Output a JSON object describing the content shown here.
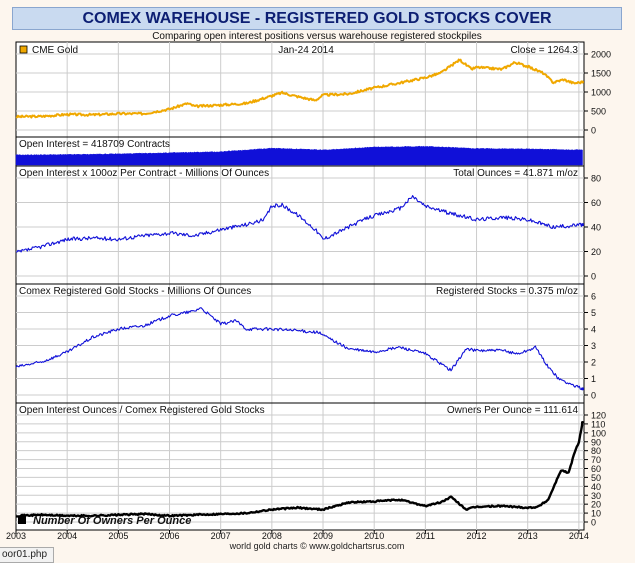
{
  "title": "COMEX WAREHOUSE - REGISTERED GOLD STOCKS COVER",
  "subtitle": "Comparing open interest positions versus warehouse registered stockpiles",
  "footer": "world gold charts © www.goldchartsrus.com",
  "file_tab": "oor01.php",
  "colors": {
    "gold": "#f0a800",
    "blue": "#1010d8",
    "black": "#000000",
    "grid": "#cccccc",
    "bg": "#ffffff"
  },
  "chart_data": [
    {
      "type": "line",
      "panel": "gold",
      "legend": "CME Gold",
      "date_label": "Jan-24  2014",
      "readout": "Close = 1264.3",
      "color": "#f0a800",
      "ylim": [
        -200,
        2200
      ],
      "yticks": [
        0,
        500,
        1000,
        1500,
        2000
      ],
      "x": [
        2003.0,
        2003.5,
        2004.0,
        2004.5,
        2005.0,
        2005.5,
        2006.0,
        2006.35,
        2006.5,
        2007.0,
        2007.5,
        2008.0,
        2008.2,
        2008.5,
        2008.85,
        2009.0,
        2009.5,
        2010.0,
        2010.5,
        2011.0,
        2011.3,
        2011.67,
        2011.9,
        2012.0,
        2012.5,
        2012.75,
        2013.0,
        2013.3,
        2013.5,
        2013.7,
        2013.9,
        2014.07
      ],
      "y": [
        350,
        360,
        410,
        400,
        430,
        430,
        550,
        700,
        620,
        660,
        700,
        900,
        980,
        880,
        780,
        920,
        950,
        1110,
        1240,
        1380,
        1500,
        1850,
        1600,
        1650,
        1600,
        1780,
        1670,
        1500,
        1250,
        1330,
        1230,
        1264
      ]
    },
    {
      "type": "area",
      "panel": "open_interest",
      "legend": "Open Interest = 418709 Contracts",
      "color": "#1010d8",
      "x": [
        2003.0,
        2004.0,
        2005.0,
        2006.0,
        2007.0,
        2008.0,
        2009.0,
        2010.0,
        2011.0,
        2012.0,
        2013.0,
        2014.07
      ],
      "y": [
        280000,
        290000,
        310000,
        340000,
        370000,
        470000,
        420000,
        500000,
        520000,
        460000,
        450000,
        418709
      ]
    },
    {
      "type": "line",
      "panel": "oi_ounces",
      "legend": "Open Interest x 100oz Per Contract - Millions Of Ounces",
      "readout": "Total Ounces = 41.871 m/oz",
      "color": "#1010d8",
      "ylim": [
        0,
        80
      ],
      "yticks": [
        0,
        20,
        40,
        60,
        80
      ],
      "x": [
        2003.0,
        2003.5,
        2004.0,
        2004.5,
        2005.0,
        2005.5,
        2006.0,
        2006.5,
        2007.0,
        2007.5,
        2007.85,
        2008.0,
        2008.2,
        2008.5,
        2008.85,
        2009.0,
        2009.5,
        2009.9,
        2010.5,
        2010.75,
        2011.0,
        2011.5,
        2012.0,
        2012.5,
        2013.0,
        2013.5,
        2014.07
      ],
      "y": [
        19,
        24,
        30,
        31,
        30,
        33,
        35,
        33,
        38,
        42,
        46,
        57,
        58,
        50,
        38,
        30,
        40,
        48,
        55,
        65,
        57,
        51,
        46,
        48,
        46,
        40,
        41.9
      ]
    },
    {
      "type": "line",
      "panel": "registered",
      "legend": "Comex Registered Gold Stocks - Millions Of Ounces",
      "readout": "Registered Stocks = 0.375 m/oz",
      "color": "#1010d8",
      "ylim": [
        0,
        6
      ],
      "yticks": [
        0,
        1,
        2,
        3,
        4,
        5,
        6
      ],
      "x": [
        2003.0,
        2003.5,
        2004.0,
        2004.5,
        2005.0,
        2005.5,
        2006.0,
        2006.5,
        2006.6,
        2007.0,
        2007.3,
        2007.5,
        2008.0,
        2008.5,
        2008.9,
        2009.5,
        2010.0,
        2010.5,
        2011.0,
        2011.3,
        2011.5,
        2011.8,
        2012.0,
        2012.5,
        2012.8,
        2013.0,
        2013.15,
        2013.4,
        2013.6,
        2013.8,
        2014.07
      ],
      "y": [
        1.7,
        2.0,
        2.6,
        3.5,
        4.0,
        4.2,
        4.8,
        5.1,
        5.3,
        4.3,
        4.5,
        4.0,
        4.0,
        3.9,
        3.8,
        2.8,
        2.6,
        2.9,
        2.5,
        1.9,
        1.5,
        2.8,
        2.7,
        2.7,
        2.5,
        2.7,
        2.9,
        1.7,
        1.0,
        0.7,
        0.375
      ]
    },
    {
      "type": "line",
      "panel": "owners",
      "legend": "Open Interest Ounces / Comex Registered Gold Stocks",
      "readout": "Owners Per Ounce = 111.614",
      "overlay_label": "Number Of Owners Per Ounce",
      "color": "#000000",
      "ylim": [
        0,
        120
      ],
      "yticks": [
        0,
        10,
        20,
        30,
        40,
        50,
        60,
        70,
        80,
        90,
        100,
        110,
        120
      ],
      "xlim": [
        2003,
        2014.1
      ],
      "xticks": [
        "2003",
        "2004",
        "2005",
        "2006",
        "2007",
        "2008",
        "2009",
        "2010",
        "2011",
        "2012",
        "2013",
        "2014"
      ],
      "x": [
        2003.0,
        2003.5,
        2004.0,
        2004.5,
        2005.0,
        2005.5,
        2006.0,
        2006.5,
        2007.0,
        2007.5,
        2008.0,
        2008.5,
        2009.0,
        2009.5,
        2010.0,
        2010.5,
        2011.0,
        2011.3,
        2011.5,
        2011.8,
        2012.0,
        2012.5,
        2013.0,
        2013.2,
        2013.4,
        2013.55,
        2013.65,
        2013.8,
        2013.9,
        2014.0,
        2014.07
      ],
      "y": [
        7,
        8,
        7,
        7,
        8,
        9,
        7,
        8,
        9,
        10,
        14,
        16,
        14,
        22,
        23,
        25,
        18,
        22,
        28,
        14,
        17,
        18,
        16,
        17,
        25,
        45,
        58,
        55,
        75,
        90,
        111.6
      ]
    }
  ]
}
